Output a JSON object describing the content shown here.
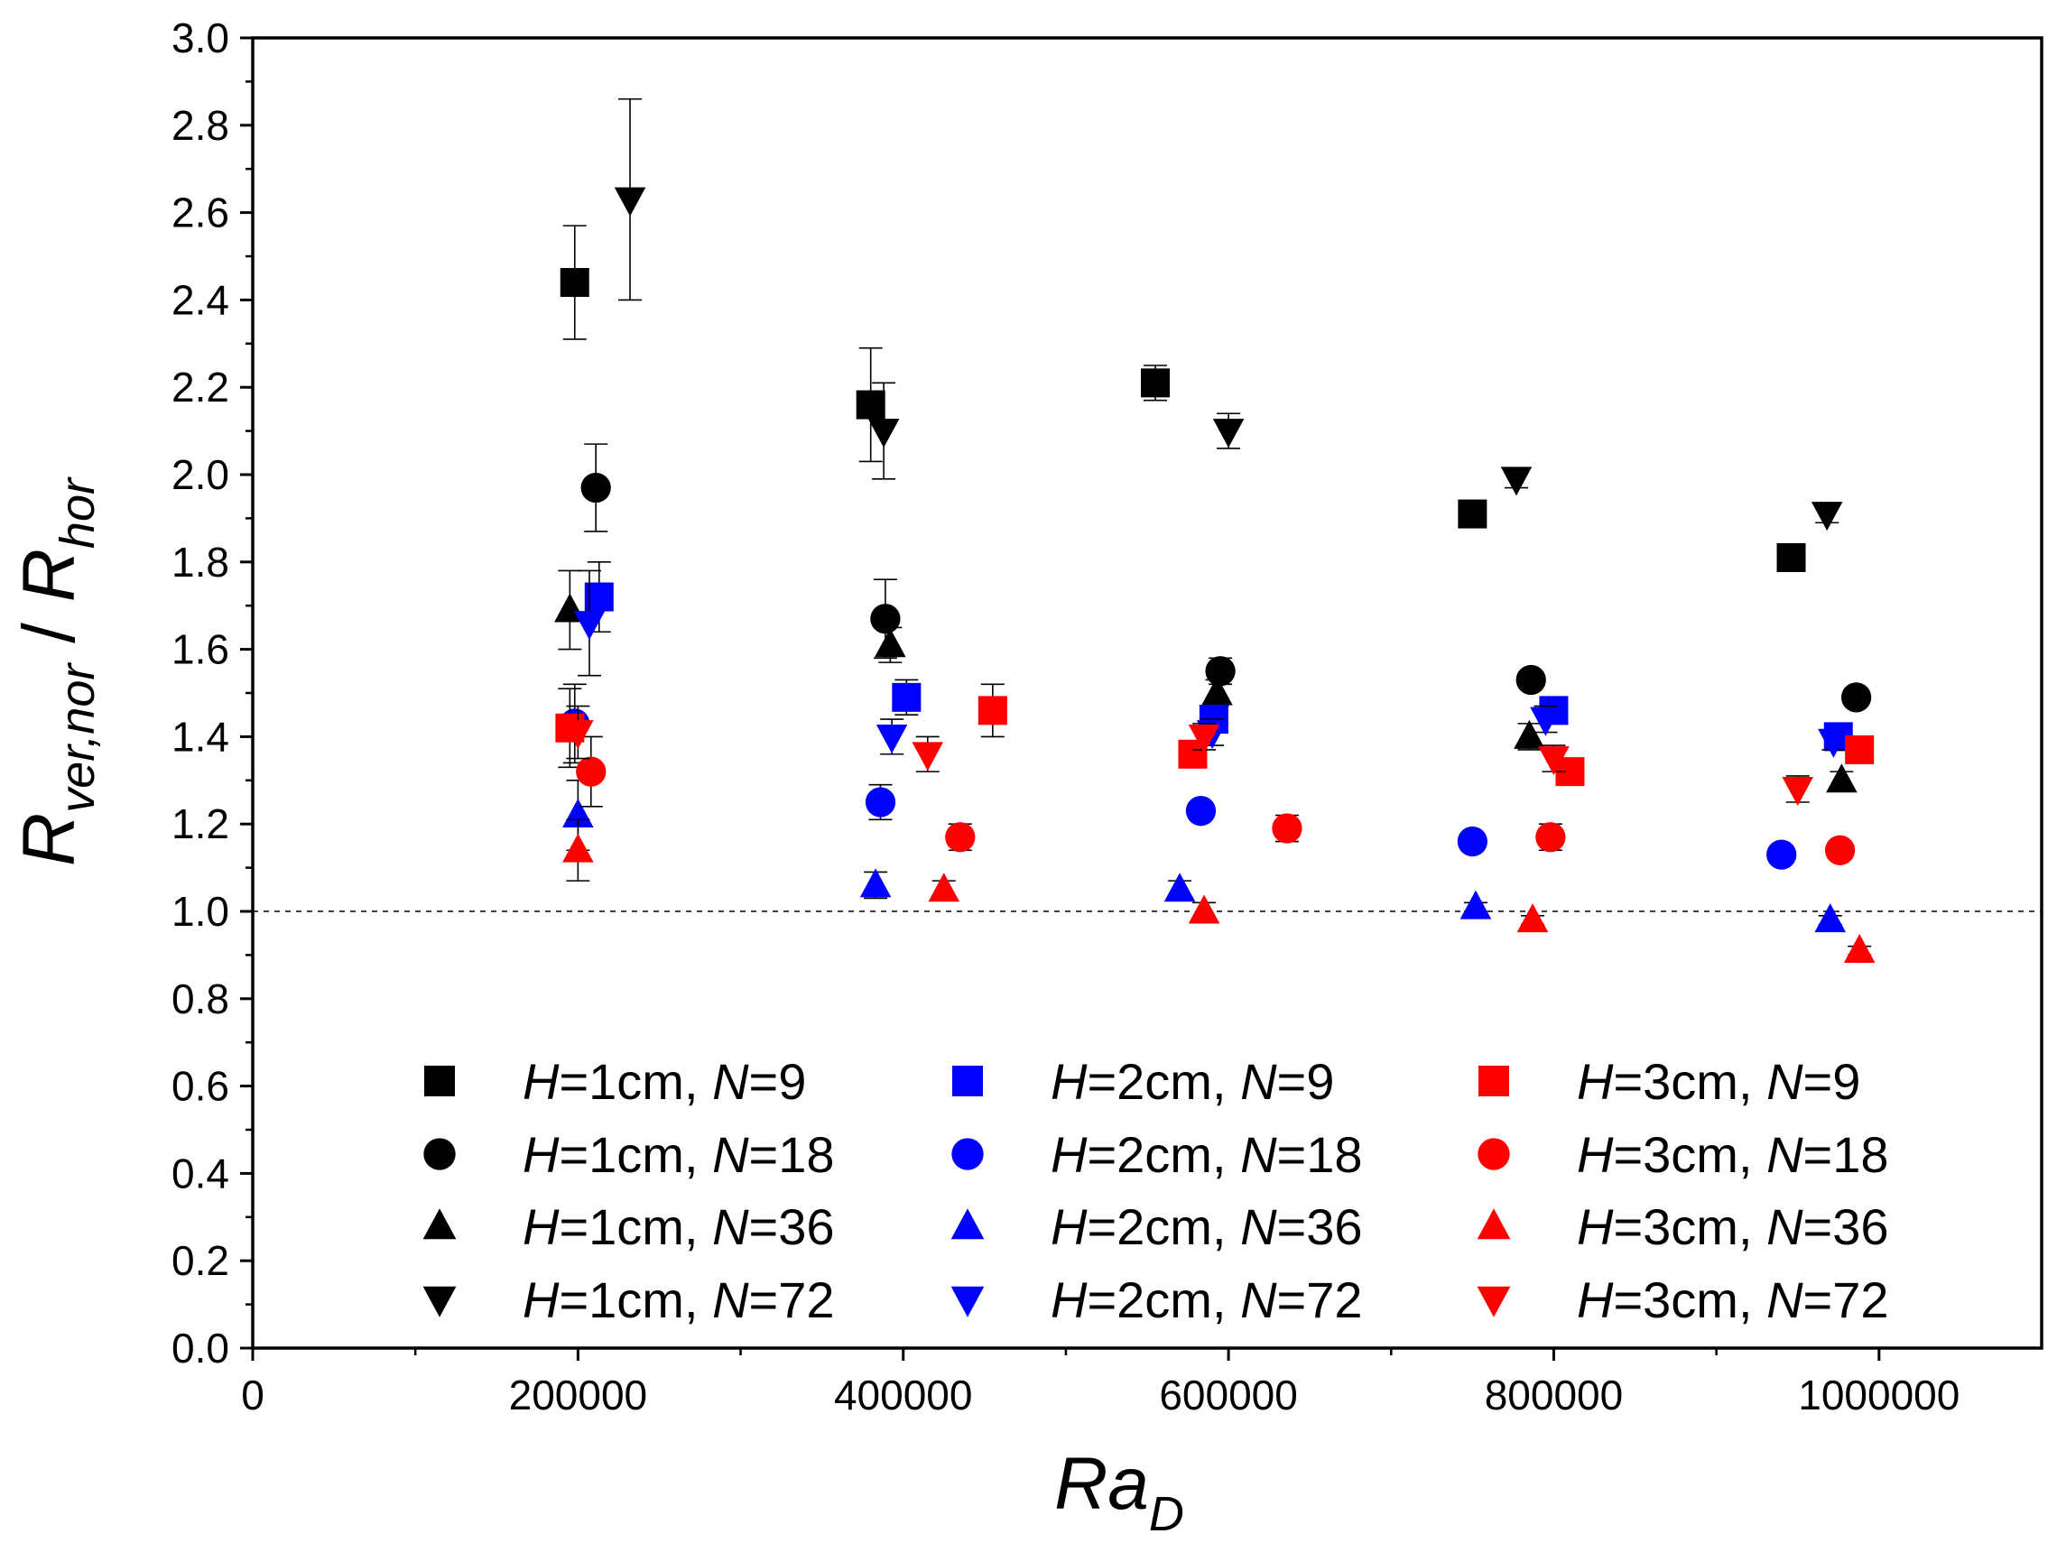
{
  "chart_data": {
    "type": "scatter",
    "title": "",
    "xlabel": {
      "main": "Ra",
      "sub": "D"
    },
    "ylabel": {
      "main1": "R",
      "sub1": "ver,nor",
      "sep": " / ",
      "main2": "R",
      "sub2": "hor"
    },
    "xlim": [
      0,
      1100000
    ],
    "ylim": [
      0,
      3.0
    ],
    "x_ticks": [
      0,
      200000,
      400000,
      600000,
      800000,
      1000000
    ],
    "x_tick_labels": [
      "0",
      "200000",
      "400000",
      "600000",
      "800000",
      "1000000"
    ],
    "y_ticks": [
      0,
      0.2,
      0.4,
      0.6,
      0.8,
      1.0,
      1.2,
      1.4,
      1.6,
      1.8,
      2.0,
      2.2,
      2.4,
      2.6,
      2.8,
      3.0
    ],
    "y_tick_labels": [
      "0.0",
      "0.2",
      "0.4",
      "0.6",
      "0.8",
      "1.0",
      "1.2",
      "1.4",
      "1.6",
      "1.8",
      "2.0",
      "2.2",
      "2.4",
      "2.6",
      "2.8",
      "3.0"
    ],
    "reference_line": {
      "y": 1.0,
      "style": "dashed"
    },
    "legend": {
      "position": "bottom",
      "columns": 3
    },
    "series": [
      {
        "name": "H=1cm, N=9",
        "legend_label": {
          "h": "H",
          "hval": "=1cm, ",
          "n": "N",
          "nval": "=9"
        },
        "color": "#000000",
        "marker": "square",
        "points": [
          {
            "x": 198000,
            "y": 2.44,
            "err": 0.13
          },
          {
            "x": 380000,
            "y": 2.16,
            "err": 0.13
          },
          {
            "x": 555000,
            "y": 2.21,
            "err": 0.04
          },
          {
            "x": 750000,
            "y": 1.91,
            "err": 0.02
          },
          {
            "x": 946000,
            "y": 1.81,
            "err": 0.02
          }
        ]
      },
      {
        "name": "H=1cm, N=18",
        "legend_label": {
          "h": "H",
          "hval": "=1cm, ",
          "n": "N",
          "nval": "=18"
        },
        "color": "#000000",
        "marker": "circle",
        "points": [
          {
            "x": 211000,
            "y": 1.97,
            "err": 0.1
          },
          {
            "x": 389000,
            "y": 1.67,
            "err": 0.09
          },
          {
            "x": 595000,
            "y": 1.55,
            "err": 0.03
          },
          {
            "x": 786000,
            "y": 1.53,
            "err": 0.02
          },
          {
            "x": 986000,
            "y": 1.49,
            "err": 0.02
          }
        ]
      },
      {
        "name": "H=1cm, N=36",
        "legend_label": {
          "h": "H",
          "hval": "=1cm, ",
          "n": "N",
          "nval": "=36"
        },
        "color": "#000000",
        "marker": "triangle-up",
        "points": [
          {
            "x": 195000,
            "y": 1.69,
            "err": 0.09
          },
          {
            "x": 392000,
            "y": 1.61,
            "err": 0.04
          },
          {
            "x": 593000,
            "y": 1.5,
            "err": 0.03
          },
          {
            "x": 785000,
            "y": 1.4,
            "err": 0.03
          },
          {
            "x": 977000,
            "y": 1.3,
            "err": 0.02
          }
        ]
      },
      {
        "name": "H=1cm, N=72",
        "legend_label": {
          "h": "H",
          "hval": "=1cm, ",
          "n": "N",
          "nval": "=72"
        },
        "color": "#000000",
        "marker": "triangle-down",
        "points": [
          {
            "x": 232000,
            "y": 2.63,
            "err": 0.23
          },
          {
            "x": 388000,
            "y": 2.1,
            "err": 0.11
          },
          {
            "x": 600000,
            "y": 2.1,
            "err": 0.04
          },
          {
            "x": 777000,
            "y": 1.99,
            "err": 0.02
          },
          {
            "x": 968000,
            "y": 1.91,
            "err": 0.02
          }
        ]
      },
      {
        "name": "H=2cm, N=9",
        "legend_label": {
          "h": "H",
          "hval": "=2cm, ",
          "n": "N",
          "nval": "=9"
        },
        "color": "#0000ff",
        "marker": "square",
        "points": [
          {
            "x": 213000,
            "y": 1.72,
            "err": 0.08
          },
          {
            "x": 402000,
            "y": 1.49,
            "err": 0.04
          },
          {
            "x": 591000,
            "y": 1.44,
            "err": 0.03
          },
          {
            "x": 800000,
            "y": 1.46,
            "err": 0.03
          },
          {
            "x": 975000,
            "y": 1.4,
            "err": 0.02
          }
        ]
      },
      {
        "name": "H=2cm, N=18",
        "legend_label": {
          "h": "H",
          "hval": "=2cm, ",
          "n": "N",
          "nval": "=18"
        },
        "color": "#0000ff",
        "marker": "circle",
        "points": [
          {
            "x": 198000,
            "y": 1.43,
            "err": 0.09
          },
          {
            "x": 386000,
            "y": 1.25,
            "err": 0.04
          },
          {
            "x": 583000,
            "y": 1.23,
            "err": 0.02
          },
          {
            "x": 750000,
            "y": 1.16,
            "err": 0.02
          },
          {
            "x": 940000,
            "y": 1.13,
            "err": 0.02
          }
        ]
      },
      {
        "name": "H=2cm, N=36",
        "legend_label": {
          "h": "H",
          "hval": "=2cm, ",
          "n": "N",
          "nval": "=36"
        },
        "color": "#0000ff",
        "marker": "triangle-up",
        "points": [
          {
            "x": 200000,
            "y": 1.22,
            "err": 0.08
          },
          {
            "x": 383000,
            "y": 1.06,
            "err": 0.03
          },
          {
            "x": 570000,
            "y": 1.05,
            "err": 0.02
          },
          {
            "x": 752000,
            "y": 1.01,
            "err": 0.01
          },
          {
            "x": 970000,
            "y": 0.98,
            "err": 0.01
          }
        ]
      },
      {
        "name": "H=2cm, N=72",
        "legend_label": {
          "h": "H",
          "hval": "=2cm, ",
          "n": "N",
          "nval": "=72"
        },
        "color": "#0000ff",
        "marker": "triangle-down",
        "points": [
          {
            "x": 207000,
            "y": 1.66,
            "err": 0.12
          },
          {
            "x": 393000,
            "y": 1.4,
            "err": 0.04
          },
          {
            "x": 590000,
            "y": 1.41,
            "err": 0.03
          },
          {
            "x": 795000,
            "y": 1.44,
            "err": 0.03
          },
          {
            "x": 972000,
            "y": 1.39,
            "err": 0.02
          }
        ]
      },
      {
        "name": "H=3cm, N=9",
        "legend_label": {
          "h": "H",
          "hval": "=3cm, ",
          "n": "N",
          "nval": "=9"
        },
        "color": "#ff0000",
        "marker": "square",
        "points": [
          {
            "x": 195000,
            "y": 1.42,
            "err": 0.09
          },
          {
            "x": 455000,
            "y": 1.46,
            "err": 0.06
          },
          {
            "x": 578000,
            "y": 1.36,
            "err": 0.03
          },
          {
            "x": 810000,
            "y": 1.32,
            "err": 0.02
          },
          {
            "x": 988000,
            "y": 1.37,
            "err": 0.02
          }
        ]
      },
      {
        "name": "H=3cm, N=18",
        "legend_label": {
          "h": "H",
          "hval": "=3cm, ",
          "n": "N",
          "nval": "=18"
        },
        "color": "#ff0000",
        "marker": "circle",
        "points": [
          {
            "x": 208000,
            "y": 1.32,
            "err": 0.08
          },
          {
            "x": 435000,
            "y": 1.17,
            "err": 0.03
          },
          {
            "x": 636000,
            "y": 1.19,
            "err": 0.03
          },
          {
            "x": 798000,
            "y": 1.17,
            "err": 0.03
          },
          {
            "x": 976000,
            "y": 1.14,
            "err": 0.02
          }
        ]
      },
      {
        "name": "H=3cm, N=36",
        "legend_label": {
          "h": "H",
          "hval": "=3cm, ",
          "n": "N",
          "nval": "=36"
        },
        "color": "#ff0000",
        "marker": "triangle-up",
        "points": [
          {
            "x": 200000,
            "y": 1.14,
            "err": 0.07
          },
          {
            "x": 425000,
            "y": 1.05,
            "err": 0.02
          },
          {
            "x": 585000,
            "y": 1.0,
            "err": 0.02
          },
          {
            "x": 787000,
            "y": 0.98,
            "err": 0.01
          },
          {
            "x": 988000,
            "y": 0.91,
            "err": 0.01
          }
        ]
      },
      {
        "name": "H=3cm, N=72",
        "legend_label": {
          "h": "H",
          "hval": "=3cm, ",
          "n": "N",
          "nval": "=72"
        },
        "color": "#ff0000",
        "marker": "triangle-down",
        "points": [
          {
            "x": 200000,
            "y": 1.41,
            "err": 0.06
          },
          {
            "x": 415000,
            "y": 1.36,
            "err": 0.04
          },
          {
            "x": 585000,
            "y": 1.4,
            "err": 0.03
          },
          {
            "x": 800000,
            "y": 1.35,
            "err": 0.03
          },
          {
            "x": 950000,
            "y": 1.28,
            "err": 0.03
          }
        ]
      }
    ]
  }
}
